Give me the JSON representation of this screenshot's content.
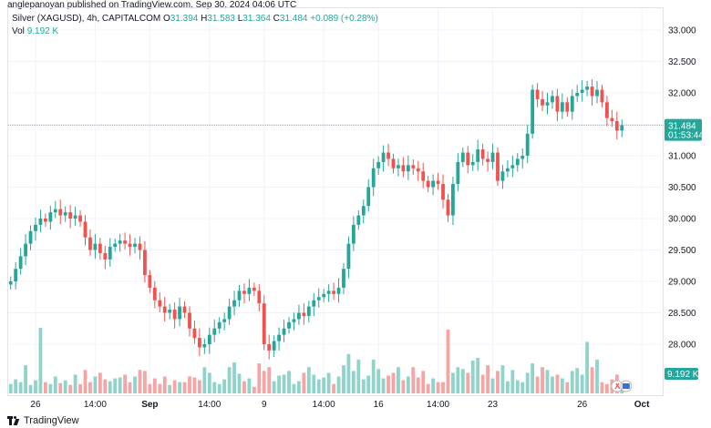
{
  "header": {
    "published": "anglepanoyan published on TradingView.com, Sep 30, 2024 04:06 UTC"
  },
  "legend": {
    "symbol": "Silver (XAGUSD), 4h, CAPITALCOM",
    "open_label": "O",
    "open": "31.394",
    "high_label": "H",
    "high": "31.583",
    "low_label": "L",
    "low": "31.364",
    "close_label": "C",
    "close": "31.484",
    "change": "+0.089 (+0.28%)",
    "vol_label": "Vol",
    "vol": "9.192 K"
  },
  "price_badge": {
    "price": "31.484",
    "countdown": "01:53:44"
  },
  "volume_badge": "9.192 K",
  "footer": {
    "brand": "TradingView"
  },
  "colors": {
    "up": "#26a69a",
    "down": "#ef5350",
    "vol_up": "#8fd3cb",
    "vol_down": "#f5a5a3",
    "grid": "#f0f3fa",
    "price_line": "#26a69a"
  },
  "chart_data": {
    "type": "candlestick",
    "y_ticks": [
      "33.000",
      "32.500",
      "32.000",
      "31.500",
      "31.000",
      "30.500",
      "30.000",
      "29.500",
      "29.000",
      "28.500",
      "28.000"
    ],
    "y_tick_values": [
      33.0,
      32.5,
      32.0,
      31.5,
      31.0,
      30.5,
      30.0,
      29.5,
      29.0,
      28.5,
      28.0
    ],
    "ylim": [
      27.6,
      33.2
    ],
    "x_ticks": [
      {
        "label": "26",
        "i": 5,
        "bold": false
      },
      {
        "label": "14:00",
        "i": 17,
        "bold": false
      },
      {
        "label": "Sep",
        "i": 28,
        "bold": true
      },
      {
        "label": "14:00",
        "i": 40,
        "bold": false
      },
      {
        "label": "9",
        "i": 51,
        "bold": false
      },
      {
        "label": "14:00",
        "i": 63,
        "bold": false
      },
      {
        "label": "16",
        "i": 74,
        "bold": false
      },
      {
        "label": "14:00",
        "i": 86,
        "bold": false
      },
      {
        "label": "23",
        "i": 97,
        "bold": false
      },
      {
        "label": "26",
        "i": 115,
        "bold": false
      },
      {
        "label": "Oct",
        "i": 127,
        "bold": true
      }
    ],
    "closes": [
      29.0,
      29.2,
      29.4,
      29.6,
      29.8,
      29.9,
      30.0,
      29.95,
      30.1,
      30.15,
      30.05,
      30.1,
      30.0,
      30.05,
      29.95,
      29.7,
      29.5,
      29.6,
      29.45,
      29.35,
      29.55,
      29.6,
      29.65,
      29.6,
      29.55,
      29.6,
      29.5,
      29.1,
      28.9,
      28.7,
      28.6,
      28.5,
      28.55,
      28.4,
      28.6,
      28.5,
      28.25,
      28.1,
      27.95,
      28.0,
      28.15,
      28.25,
      28.35,
      28.4,
      28.6,
      28.7,
      28.85,
      28.8,
      28.9,
      28.85,
      28.65,
      28.0,
      27.9,
      28.05,
      28.15,
      28.25,
      28.35,
      28.4,
      28.5,
      28.45,
      28.6,
      28.7,
      28.75,
      28.8,
      28.85,
      28.8,
      28.9,
      29.2,
      29.6,
      29.9,
      30.05,
      30.2,
      30.5,
      30.8,
      30.9,
      31.05,
      30.95,
      30.8,
      30.85,
      30.75,
      30.85,
      30.8,
      30.75,
      30.6,
      30.5,
      30.6,
      30.55,
      30.3,
      30.05,
      30.55,
      30.9,
      31.05,
      30.85,
      30.9,
      31.1,
      30.95,
      30.9,
      31.05,
      30.6,
      30.75,
      30.8,
      30.85,
      30.95,
      31.0,
      31.35,
      32.05,
      31.9,
      31.8,
      31.85,
      31.95,
      31.7,
      31.85,
      31.7,
      31.95,
      32.0,
      32.05,
      32.1,
      31.95,
      32.05,
      31.85,
      31.6,
      31.55,
      31.4,
      31.484
    ],
    "opens_from_prev_close": true,
    "volumes": [
      0.1,
      0.15,
      0.12,
      0.3,
      0.09,
      0.14,
      0.7,
      0.12,
      0.1,
      0.18,
      0.11,
      0.14,
      0.09,
      0.2,
      0.1,
      0.25,
      0.12,
      0.18,
      0.22,
      0.15,
      0.13,
      0.16,
      0.17,
      0.2,
      0.12,
      0.18,
      0.25,
      0.24,
      0.1,
      0.16,
      0.1,
      0.18,
      0.09,
      0.14,
      0.12,
      0.12,
      0.18,
      0.17,
      0.14,
      0.28,
      0.22,
      0.12,
      0.1,
      0.15,
      0.28,
      0.33,
      0.21,
      0.13,
      0.16,
      0.07,
      0.32,
      0.24,
      0.28,
      0.13,
      0.19,
      0.2,
      0.24,
      0.1,
      0.13,
      0.22,
      0.28,
      0.2,
      0.15,
      0.17,
      0.22,
      0.1,
      0.18,
      0.3,
      0.42,
      0.24,
      0.36,
      0.15,
      0.19,
      0.36,
      0.26,
      0.16,
      0.19,
      0.22,
      0.28,
      0.14,
      0.18,
      0.28,
      0.17,
      0.24,
      0.1,
      0.16,
      0.12,
      0.12,
      0.68,
      0.22,
      0.28,
      0.26,
      0.22,
      0.35,
      0.38,
      0.2,
      0.3,
      0.16,
      0.24,
      0.3,
      0.13,
      0.25,
      0.14,
      0.12,
      0.22,
      0.32,
      0.18,
      0.28,
      0.25,
      0.18,
      0.2,
      0.16,
      0.12,
      0.24,
      0.27,
      0.2,
      0.55,
      0.28,
      0.36,
      0.12,
      0.1,
      0.15,
      0.2,
      0.05
    ]
  }
}
